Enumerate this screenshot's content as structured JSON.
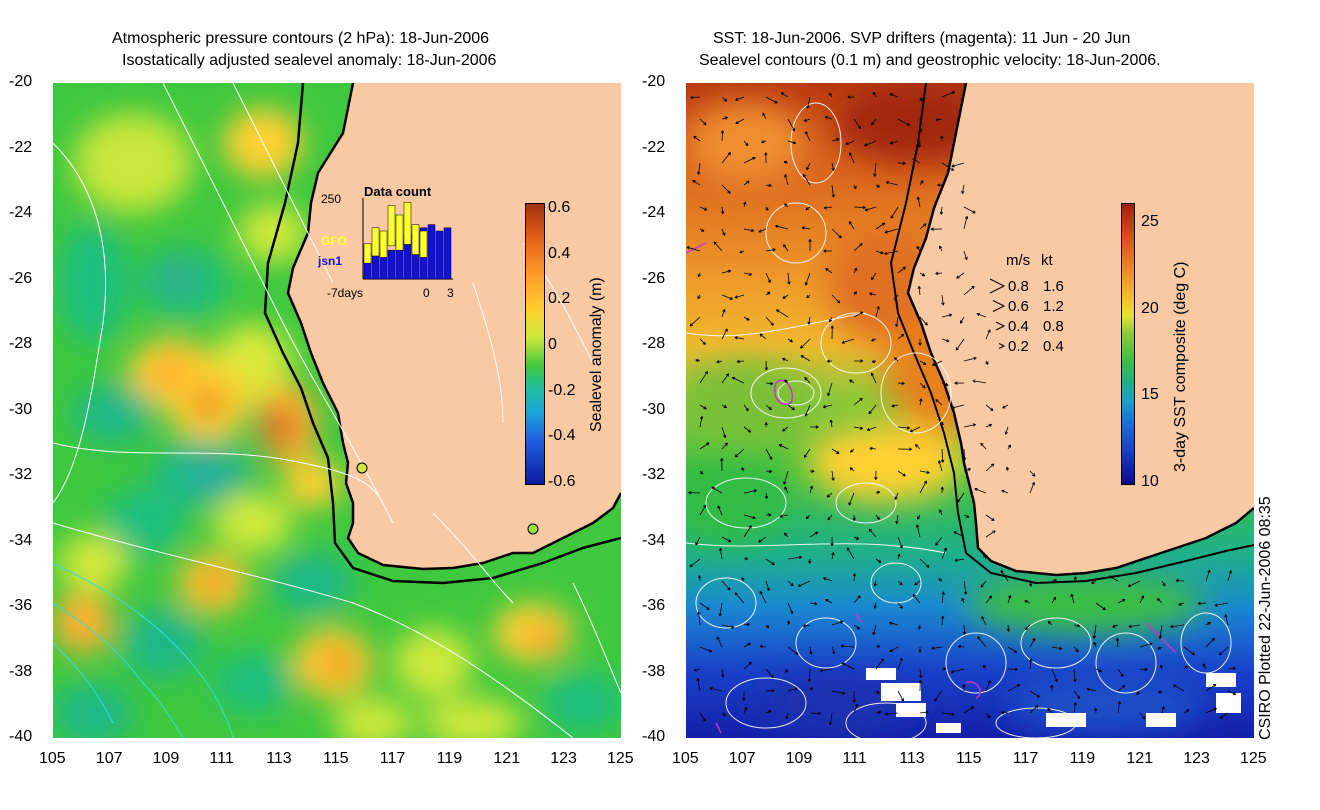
{
  "colors": {
    "land": "#f9c9a3",
    "contour": "#ffffff",
    "coast": "#000000",
    "drifter": "#cc33cc",
    "gfo": "#ffff33",
    "jsn1": "#1111dd"
  },
  "left_panel": {
    "title_line1": "Atmospheric pressure contours (2 hPa): 18-Jun-2006",
    "title_line2": "Isostatically adjusted sealevel anomaly: 18-Jun-2006",
    "y_ticks": [
      "-20",
      "-22",
      "-24",
      "-26",
      "-28",
      "-30",
      "-32",
      "-34",
      "-36",
      "-38",
      "-40"
    ],
    "x_ticks": [
      "105",
      "107",
      "109",
      "111",
      "113",
      "115",
      "117",
      "119",
      "121",
      "123",
      "125"
    ],
    "colorbar": {
      "label": "Sealevel anomaly (m)",
      "ticks": [
        "0.6",
        "0.4",
        "0.2",
        "0",
        "-0.2",
        "-0.4",
        "-0.6"
      ]
    },
    "inset": {
      "title": "Data count",
      "ymax": "250",
      "x_left": "-7days",
      "x_mid": "0",
      "x_right": "3",
      "legend_gfo": "GFO",
      "legend_jsn1": "jsn1",
      "gfo_counts": [
        110,
        160,
        150,
        230,
        200,
        240,
        170,
        150
      ],
      "jsn1_counts": [
        60,
        80,
        100,
        90,
        120,
        140,
        150,
        160,
        170,
        150,
        160
      ]
    }
  },
  "right_panel": {
    "title_line1": "SST: 18-Jun-2006. SVP drifters (magenta): 11 Jun - 20 Jun",
    "title_line2": "Sealevel contours (0.1 m) and geostrophic velocity: 18-Jun-2006.",
    "y_ticks": [
      "-20",
      "-22",
      "-24",
      "-26",
      "-28",
      "-30",
      "-32",
      "-34",
      "-36",
      "-38",
      "-40"
    ],
    "x_ticks": [
      "105",
      "107",
      "109",
      "111",
      "113",
      "115",
      "117",
      "119",
      "121",
      "123",
      "125"
    ],
    "colorbar": {
      "label": "3-day SST composite (deg C)",
      "ticks": [
        "25",
        "20",
        "15",
        "10"
      ]
    },
    "velocity_legend": {
      "header_ms": "m/s",
      "header_kt": "kt",
      "rows": [
        {
          "ms": "0.8",
          "kt": "1.6"
        },
        {
          "ms": "0.6",
          "kt": "1.2"
        },
        {
          "ms": "0.4",
          "kt": "0.8"
        },
        {
          "ms": "0.2",
          "kt": "0.4"
        }
      ]
    }
  },
  "footer": {
    "credit": "CSIRO Plotted 22-Jun-2006 08:35"
  }
}
